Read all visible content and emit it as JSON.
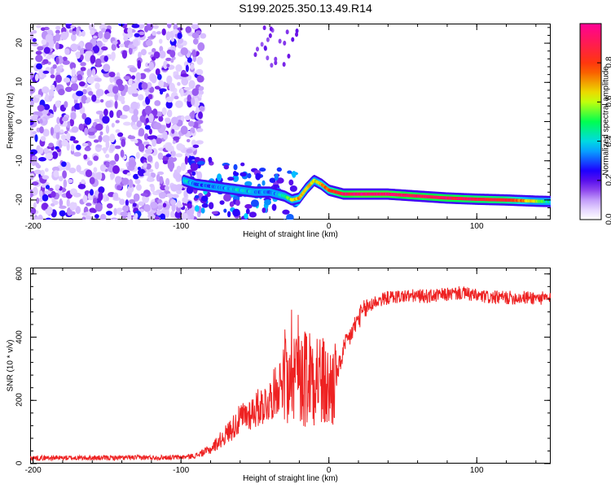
{
  "title": "S199.2025.350.13.49.R14",
  "chart_data": [
    {
      "type": "heatmap",
      "title": "S199.2025.350.13.49.R14",
      "xlabel": "Height of straight line (km)",
      "ylabel": "Frequency (Hz)",
      "xlim": [
        -202,
        150
      ],
      "ylim": [
        -25,
        25
      ],
      "x_ticks": [
        "-200",
        "-100",
        "0",
        "100"
      ],
      "x_tick_values": [
        -200,
        -100,
        0,
        100
      ],
      "y_ticks": [
        "20",
        "10",
        "0",
        "-10",
        "-20"
      ],
      "y_tick_values": [
        20,
        10,
        0,
        -10,
        -20
      ],
      "colorbar": {
        "label": "Normalized spectral amplitude",
        "range": [
          0,
          1
        ],
        "ticks": [
          "0.0",
          "0.2",
          "0.4",
          "0.6",
          "0.8"
        ],
        "tick_values": [
          0,
          0.2,
          0.4,
          0.6,
          0.8
        ],
        "colors": [
          "#ffffff",
          "#6600ff",
          "#0000ff",
          "#00ffff",
          "#00ff00",
          "#ffff00",
          "#ff0000",
          "#ff0099"
        ]
      },
      "ridge": {
        "x": [
          -98,
          -90,
          -80,
          -70,
          -60,
          -50,
          -40,
          -30,
          -25,
          -20,
          -15,
          -10,
          -5,
          0,
          10,
          20,
          40,
          60,
          80,
          100,
          120,
          140,
          150
        ],
        "freq": [
          -15,
          -16,
          -16.5,
          -17,
          -17.5,
          -18,
          -18,
          -19,
          -20,
          -19.5,
          -17,
          -15,
          -16,
          -17.5,
          -18.5,
          -18.5,
          -18.5,
          -19,
          -19.5,
          -19.8,
          -20,
          -20.3,
          -20.4
        ],
        "amplitude": [
          0.4,
          0.3,
          0.3,
          0.35,
          0.4,
          0.35,
          0.3,
          0.45,
          0.6,
          0.7,
          0.65,
          0.6,
          0.7,
          0.75,
          0.9,
          0.95,
          0.95,
          0.9,
          0.92,
          0.88,
          0.85,
          0.6,
          0.4
        ]
      },
      "noise_region_x": [
        -202,
        -85
      ],
      "noise_amplitude_range": [
        0.05,
        0.25
      ]
    },
    {
      "type": "line",
      "xlabel": "Height of straight line (km)",
      "ylabel": "SNR (10 * v/v)",
      "xlim": [
        -202,
        150
      ],
      "ylim": [
        0,
        620
      ],
      "x_ticks": [
        "-200",
        "-100",
        "0",
        "100"
      ],
      "x_tick_values": [
        -200,
        -100,
        0,
        100
      ],
      "y_ticks": [
        "0",
        "200",
        "400",
        "600"
      ],
      "y_tick_values": [
        0,
        200,
        400,
        600
      ],
      "color": "#ee2222",
      "x": [
        -202,
        -150,
        -100,
        -90,
        -80,
        -70,
        -60,
        -50,
        -40,
        -30,
        -25,
        -20,
        -15,
        -10,
        -5,
        0,
        5,
        10,
        15,
        20,
        25,
        30,
        40,
        50,
        60,
        70,
        80,
        90,
        100,
        110,
        120,
        130,
        140,
        150
      ],
      "values": [
        18,
        18,
        20,
        25,
        45,
        90,
        140,
        170,
        200,
        280,
        330,
        300,
        270,
        300,
        260,
        230,
        270,
        360,
        410,
        460,
        490,
        510,
        525,
        530,
        530,
        530,
        535,
        540,
        530,
        525,
        525,
        525,
        525,
        520
      ]
    }
  ]
}
